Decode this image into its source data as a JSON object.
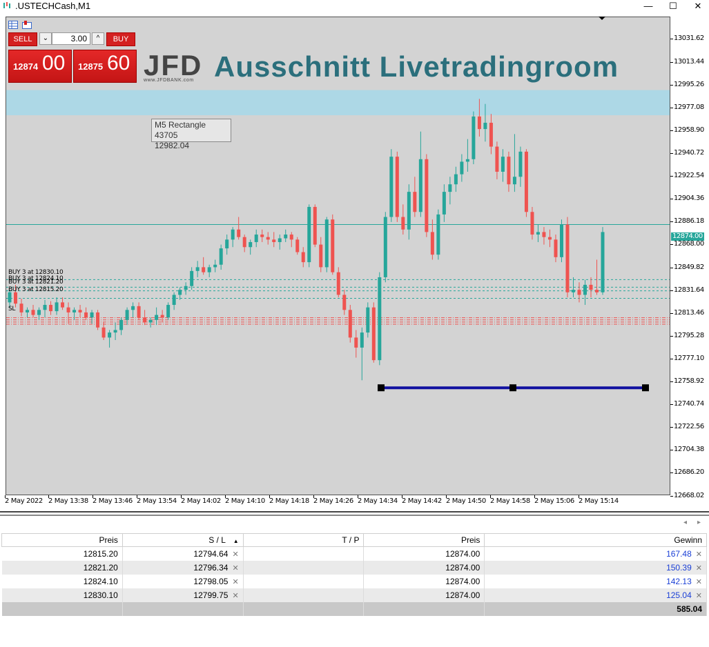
{
  "window": {
    "title": ".USTECHCash,M1",
    "minimize_label": "—",
    "maximize_label": "☐",
    "close_label": "✕"
  },
  "trade_panel": {
    "sell_label": "SELL",
    "buy_label": "BUY",
    "lot_value": "3.00",
    "sell_price_small": "12874",
    "sell_price_big": "00",
    "buy_price_small": "12875",
    "buy_price_big": "60",
    "spin_down_label": "⌄",
    "spin_up_label": "^"
  },
  "logo": {
    "name": "JFD",
    "sub": "www.JFDBANK.com"
  },
  "headline": "Ausschnitt Livetradingroom",
  "tooltip": {
    "line1": "M5 Rectangle 43705",
    "line2": "12982.04"
  },
  "order_labels": [
    "BUY 3 at 12830.10",
    "BUY 3 at 12824.10",
    "BUY 3 at 12821.20",
    "BUY 3 at 12815.20"
  ],
  "sl_label": "SL",
  "colors": {
    "bull": "#26a69a",
    "bear": "#ef5350",
    "zone": "#add8e6",
    "hline": "#1010a0",
    "background": "#d3d3d3"
  },
  "chart_data": {
    "type": "candlestick",
    "symbol": ".USTECHCash",
    "timeframe": "M1",
    "ylim": [
      12659.0,
      13039.0
    ],
    "yticks": [
      "13031.62",
      "13013.44",
      "12995.26",
      "12977.08",
      "12958.90",
      "12940.72",
      "12922.54",
      "12904.36",
      "12886.18",
      "12868.00",
      "12849.82",
      "12831.64",
      "12813.46",
      "12795.28",
      "12777.10",
      "12758.92",
      "12740.74",
      "12722.56",
      "12704.38",
      "12686.20",
      "12668.02"
    ],
    "xticks": [
      "2 May 2022",
      "2 May 13:38",
      "2 May 13:46",
      "2 May 13:54",
      "2 May 14:02",
      "2 May 14:10",
      "2 May 14:18",
      "2 May 14:26",
      "2 May 14:34",
      "2 May 14:42",
      "2 May 14:50",
      "2 May 14:58",
      "2 May 15:06",
      "2 May 15:14"
    ],
    "current_price": "12874.00",
    "zone": {
      "from": 12961.0,
      "to": 12981.0
    },
    "horizontal_line": 12744.0,
    "order_levels": [
      12830.1,
      12824.1,
      12821.2,
      12815.2
    ],
    "stop_levels": [
      12799.75,
      12798.05,
      12796.34,
      12794.64
    ],
    "candles": [
      [
        12812,
        12822,
        12808,
        12820
      ],
      [
        12820,
        12826,
        12808,
        12811
      ],
      [
        12811,
        12815,
        12801,
        12804
      ],
      [
        12804,
        12808,
        12800,
        12806
      ],
      [
        12806,
        12810,
        12800,
        12802
      ],
      [
        12802,
        12808,
        12798,
        12806
      ],
      [
        12806,
        12814,
        12800,
        12810
      ],
      [
        12810,
        12813,
        12802,
        12805
      ],
      [
        12805,
        12816,
        12802,
        12812
      ],
      [
        12812,
        12816,
        12806,
        12808
      ],
      [
        12808,
        12812,
        12795,
        12804
      ],
      [
        12804,
        12808,
        12798,
        12806
      ],
      [
        12806,
        12810,
        12800,
        12804
      ],
      [
        12804,
        12808,
        12798,
        12800
      ],
      [
        12800,
        12806,
        12795,
        12804
      ],
      [
        12804,
        12806,
        12790,
        12792
      ],
      [
        12792,
        12796,
        12782,
        12784
      ],
      [
        12784,
        12790,
        12776,
        12788
      ],
      [
        12788,
        12796,
        12782,
        12790
      ],
      [
        12790,
        12800,
        12786,
        12798
      ],
      [
        12798,
        12808,
        12794,
        12806
      ],
      [
        12806,
        12812,
        12800,
        12809
      ],
      [
        12809,
        12812,
        12798,
        12800
      ],
      [
        12800,
        12806,
        12794,
        12796
      ],
      [
        12796,
        12800,
        12792,
        12798
      ],
      [
        12798,
        12808,
        12794,
        12802
      ],
      [
        12802,
        12806,
        12796,
        12800
      ],
      [
        12800,
        12812,
        12798,
        12810
      ],
      [
        12810,
        12820,
        12806,
        12818
      ],
      [
        12818,
        12824,
        12814,
        12822
      ],
      [
        12822,
        12828,
        12818,
        12825
      ],
      [
        12825,
        12840,
        12822,
        12837
      ],
      [
        12837,
        12845,
        12832,
        12840
      ],
      [
        12840,
        12848,
        12834,
        12836
      ],
      [
        12836,
        12842,
        12832,
        12840
      ],
      [
        12840,
        12846,
        12836,
        12842
      ],
      [
        12842,
        12858,
        12838,
        12855
      ],
      [
        12855,
        12866,
        12850,
        12862
      ],
      [
        12862,
        12872,
        12856,
        12870
      ],
      [
        12870,
        12880,
        12862,
        12864
      ],
      [
        12864,
        12866,
        12852,
        12856
      ],
      [
        12856,
        12862,
        12850,
        12860
      ],
      [
        12860,
        12870,
        12856,
        12866
      ],
      [
        12866,
        12870,
        12860,
        12864
      ],
      [
        12864,
        12868,
        12858,
        12862
      ],
      [
        12862,
        12868,
        12856,
        12860
      ],
      [
        12860,
        12866,
        12854,
        12863
      ],
      [
        12863,
        12870,
        12860,
        12866
      ],
      [
        12866,
        12868,
        12856,
        12862
      ],
      [
        12862,
        12864,
        12850,
        12852
      ],
      [
        12852,
        12856,
        12840,
        12844
      ],
      [
        12844,
        12890,
        12840,
        12888
      ],
      [
        12888,
        12890,
        12856,
        12858
      ],
      [
        12858,
        12864,
        12836,
        12840
      ],
      [
        12840,
        12880,
        12836,
        12878
      ],
      [
        12878,
        12882,
        12834,
        12836
      ],
      [
        12836,
        12840,
        12816,
        12818
      ],
      [
        12818,
        12822,
        12802,
        12806
      ],
      [
        12806,
        12810,
        12780,
        12784
      ],
      [
        12784,
        12790,
        12768,
        12776
      ],
      [
        12776,
        12792,
        12750,
        12788
      ],
      [
        12788,
        12812,
        12784,
        12808
      ],
      [
        12808,
        12812,
        12764,
        12766
      ],
      [
        12766,
        12836,
        12762,
        12832
      ],
      [
        12832,
        12884,
        12828,
        12880
      ],
      [
        12880,
        12934,
        12876,
        12928
      ],
      [
        12928,
        12932,
        12876,
        12880
      ],
      [
        12880,
        12890,
        12866,
        12870
      ],
      [
        12870,
        12906,
        12862,
        12900
      ],
      [
        12900,
        12912,
        12880,
        12884
      ],
      [
        12884,
        12948,
        12880,
        12926
      ],
      [
        12926,
        12930,
        12864,
        12868
      ],
      [
        12868,
        12878,
        12846,
        12850
      ],
      [
        12850,
        12886,
        12846,
        12882
      ],
      [
        12882,
        12906,
        12876,
        12900
      ],
      [
        12900,
        12912,
        12890,
        12906
      ],
      [
        12906,
        12920,
        12900,
        12914
      ],
      [
        12914,
        12930,
        12908,
        12924
      ],
      [
        12924,
        12942,
        12916,
        12926
      ],
      [
        12926,
        12964,
        12922,
        12960
      ],
      [
        12960,
        12974,
        12944,
        12950
      ],
      [
        12950,
        12970,
        12940,
        12955
      ],
      [
        12955,
        12962,
        12930,
        12936
      ],
      [
        12936,
        12940,
        12910,
        12916
      ],
      [
        12916,
        12934,
        12908,
        12928
      ],
      [
        12928,
        12932,
        12900,
        12906
      ],
      [
        12906,
        12946,
        12900,
        12912
      ],
      [
        12912,
        12936,
        12904,
        12932
      ],
      [
        12932,
        12934,
        12880,
        12884
      ],
      [
        12884,
        12888,
        12862,
        12866
      ],
      [
        12866,
        12874,
        12860,
        12868
      ],
      [
        12868,
        12872,
        12858,
        12864
      ],
      [
        12864,
        12870,
        12856,
        12862
      ],
      [
        12862,
        12866,
        12844,
        12848
      ],
      [
        12848,
        12878,
        12844,
        12874
      ],
      [
        12874,
        12880,
        12816,
        12820
      ],
      [
        12820,
        12832,
        12816,
        12822
      ],
      [
        12822,
        12828,
        12812,
        12818
      ],
      [
        12818,
        12830,
        12810,
        12826
      ],
      [
        12826,
        12832,
        12816,
        12822
      ],
      [
        12822,
        12846,
        12818,
        12820
      ],
      [
        12820,
        12872,
        12818,
        12868
      ]
    ]
  },
  "orders_table": {
    "headers": [
      "Preis",
      "S / L",
      "T / P",
      "Preis",
      "Gewinn"
    ],
    "rows": [
      {
        "open": "12815.20",
        "sl": "12794.64",
        "tp": "",
        "price": "12874.00",
        "profit": "167.48"
      },
      {
        "open": "12821.20",
        "sl": "12796.34",
        "tp": "",
        "price": "12874.00",
        "profit": "150.39"
      },
      {
        "open": "12824.10",
        "sl": "12798.05",
        "tp": "",
        "price": "12874.00",
        "profit": "142.13"
      },
      {
        "open": "12830.10",
        "sl": "12799.75",
        "tp": "",
        "price": "12874.00",
        "profit": "125.04"
      }
    ],
    "total": "585.04"
  }
}
